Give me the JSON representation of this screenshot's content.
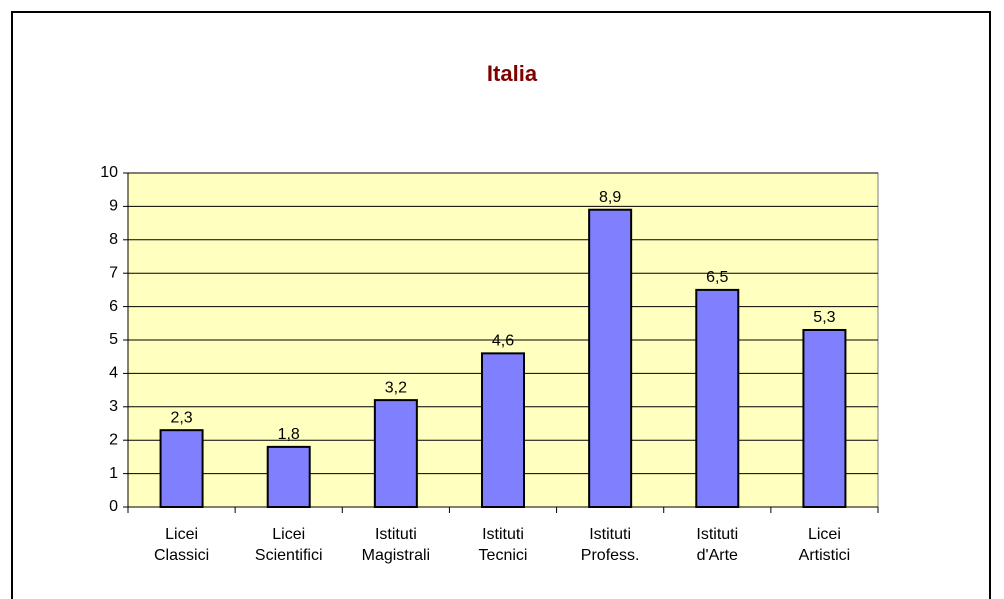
{
  "chart_data": {
    "type": "bar",
    "title": "Italia",
    "categories": [
      [
        "Licei",
        "Classici"
      ],
      [
        "Licei",
        "Scientifici"
      ],
      [
        "Istituti",
        "Magistrali"
      ],
      [
        "Istituti",
        "Tecnici"
      ],
      [
        "Istituti",
        "Profess."
      ],
      [
        "Istituti",
        "d'Arte"
      ],
      [
        "Licei",
        "Artistici"
      ]
    ],
    "values": [
      2.3,
      1.8,
      3.2,
      4.6,
      8.9,
      6.5,
      5.3
    ],
    "value_labels": [
      "2,3",
      "1,8",
      "3,2",
      "4,6",
      "8,9",
      "6,5",
      "5,3"
    ],
    "color": "#8080ff",
    "plot_background": "#ffffc0",
    "ylim": [
      0,
      10
    ],
    "yticks": [
      0,
      1,
      2,
      3,
      4,
      5,
      6,
      7,
      8,
      9,
      10
    ],
    "grid": true
  }
}
